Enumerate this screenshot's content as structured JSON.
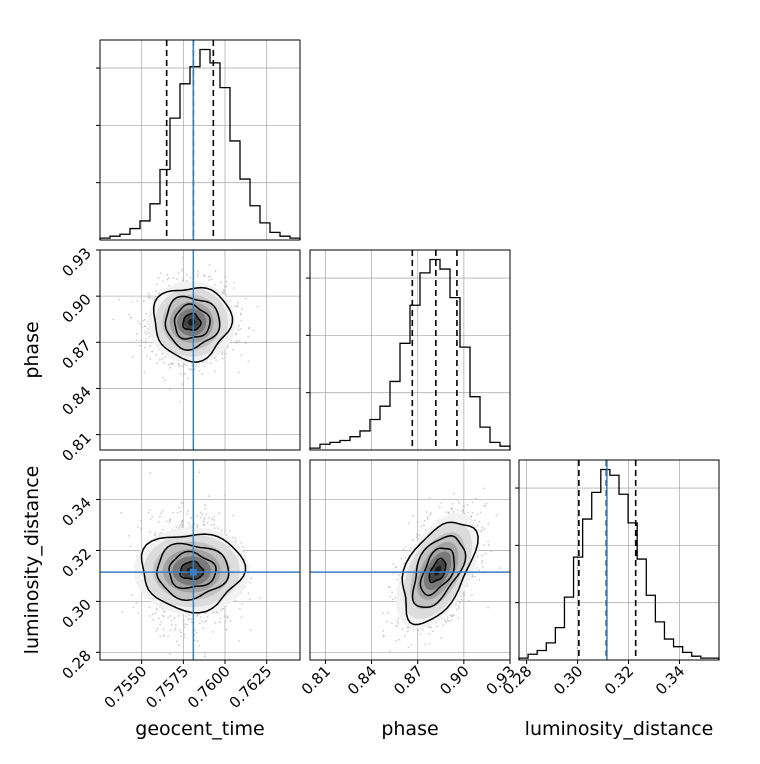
{
  "figure": {
    "parameters": [
      "geocent_time",
      "phase",
      "luminosity_distance"
    ],
    "colors": {
      "truth": "#3b7dbf",
      "hist": "#000000",
      "quantile": "#000000",
      "grid": "#b0b0b0",
      "scatter": "#b8b8b8"
    }
  },
  "chart_data": {
    "type": "corner",
    "axes": [
      {
        "name": "geocent_time",
        "xlabel": "geocent_time",
        "range": [
          0.7525,
          0.7645
        ],
        "ticks": [
          "0.7550",
          "0.7575",
          "0.7600",
          "0.7625"
        ],
        "tick_values": [
          0.755,
          0.7575,
          0.76,
          0.7625
        ],
        "truth": 0.7581,
        "quantiles": [
          0.7565,
          0.7581,
          0.7593
        ],
        "hist_bins": [
          0.7525,
          0.7645
        ],
        "hist_counts": [
          1,
          2,
          3,
          6,
          10,
          19,
          37,
          64,
          82,
          91,
          100,
          93,
          80,
          52,
          32,
          18,
          9,
          4,
          2,
          1
        ]
      },
      {
        "name": "phase",
        "xlabel": "phase",
        "ylabel": "phase",
        "range": [
          0.8,
          0.93
        ],
        "ticks": [
          "0.81",
          "0.84",
          "0.87",
          "0.90",
          "0.93"
        ],
        "tick_values": [
          0.81,
          0.84,
          0.87,
          0.9,
          0.93
        ],
        "quantiles": [
          0.8665,
          0.8818,
          0.8955
        ],
        "hist_bins": [
          0.8,
          0.93
        ],
        "hist_counts": [
          1,
          3,
          4,
          5,
          7,
          10,
          16,
          23,
          36,
          56,
          76,
          93,
          100,
          95,
          80,
          54,
          28,
          12,
          4,
          2
        ]
      },
      {
        "name": "luminosity_distance",
        "xlabel": "luminosity_distance",
        "ylabel": "luminosity_distance",
        "range": [
          0.277,
          0.3555
        ],
        "ticks": [
          "0.28",
          "0.30",
          "0.32",
          "0.34"
        ],
        "tick_values": [
          0.28,
          0.3,
          0.32,
          0.34
        ],
        "truth": 0.3115,
        "quantiles": [
          0.3005,
          0.3113,
          0.3228
        ],
        "hist_bins": [
          0.277,
          0.3555
        ],
        "hist_counts": [
          1,
          3,
          5,
          9,
          17,
          33,
          54,
          74,
          88,
          100,
          97,
          87,
          72,
          53,
          34,
          20,
          11,
          7,
          4,
          2,
          1,
          1
        ]
      }
    ],
    "joint": [
      {
        "x": "geocent_time",
        "y": "phase",
        "mean": [
          0.758,
          0.883
        ],
        "sd": [
          0.00125,
          0.0128
        ],
        "corr": 0.0
      },
      {
        "x": "geocent_time",
        "y": "luminosity_distance",
        "mean": [
          0.758,
          0.312
        ],
        "sd": [
          0.00125,
          0.0108
        ],
        "corr": 0.0
      },
      {
        "x": "phase",
        "y": "luminosity_distance",
        "mean": [
          0.883,
          0.312
        ],
        "sd": [
          0.0128,
          0.0108
        ],
        "corr": 0.5
      }
    ],
    "contour_levels_sigma": [
      0.5,
      1.0,
      1.5,
      2.0
    ],
    "grid": true
  }
}
